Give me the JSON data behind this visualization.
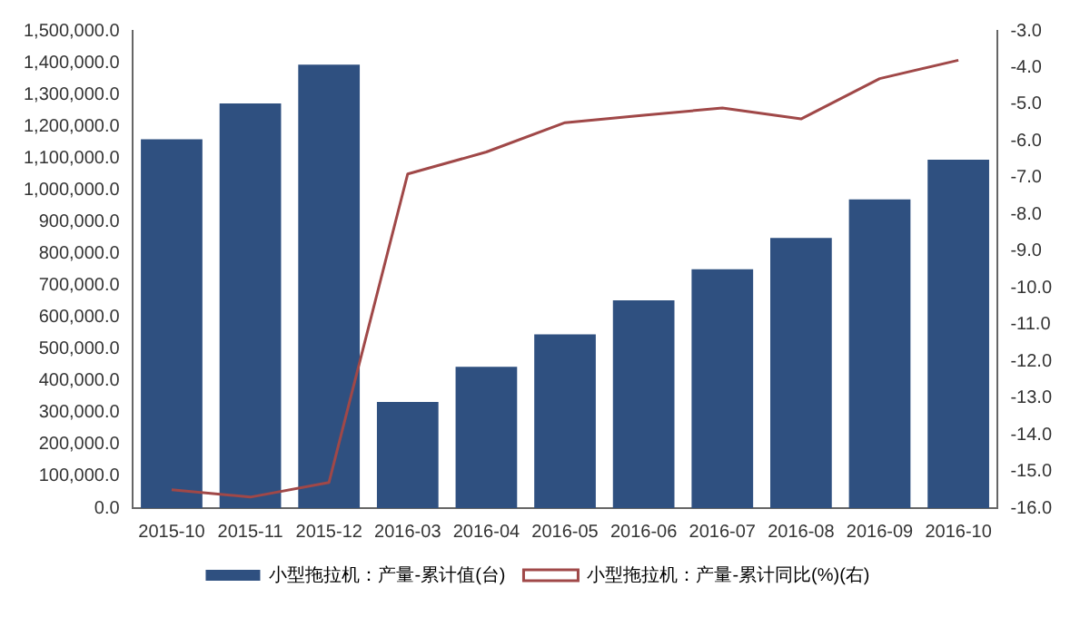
{
  "chart_data": {
    "type": "bar",
    "categories": [
      "2015-10",
      "2015-11",
      "2015-12",
      "2016-03",
      "2016-04",
      "2016-05",
      "2016-06",
      "2016-07",
      "2016-08",
      "2016-09",
      "2016-10"
    ],
    "series": [
      {
        "name": "小型拖拉机：产量-累计值(台)",
        "color": "#2f5080",
        "values": [
          1159000,
          1272000,
          1394000,
          334000,
          444000,
          546000,
          653000,
          751000,
          849000,
          970000,
          1095000
        ]
      },
      {
        "name": "小型拖拉机：产量-累计同比(%)(右)",
        "type": "line",
        "axis": "y2",
        "color": "#a04848",
        "values": [
          -15.5,
          -15.7,
          -15.3,
          -6.9,
          -6.3,
          -5.5,
          -5.3,
          -5.1,
          -5.4,
          -4.3,
          -3.8
        ]
      }
    ],
    "ylim": [
      0,
      1500000
    ],
    "yticks": [
      {
        "value": 0,
        "label": "0.0"
      },
      {
        "value": 100000,
        "label": "100,000.0"
      },
      {
        "value": 200000,
        "label": "200,000.0"
      },
      {
        "value": 300000,
        "label": "300,000.0"
      },
      {
        "value": 400000,
        "label": "400,000.0"
      },
      {
        "value": 500000,
        "label": "500,000.0"
      },
      {
        "value": 600000,
        "label": "600,000.0"
      },
      {
        "value": 700000,
        "label": "700,000.0"
      },
      {
        "value": 800000,
        "label": "800,000.0"
      },
      {
        "value": 900000,
        "label": "900,000.0"
      },
      {
        "value": 1000000,
        "label": "1,000,000.0"
      },
      {
        "value": 1100000,
        "label": "1,100,000.0"
      },
      {
        "value": 1200000,
        "label": "1,200,000.0"
      },
      {
        "value": 1300000,
        "label": "1,300,000.0"
      },
      {
        "value": 1400000,
        "label": "1,400,000.0"
      },
      {
        "value": 1500000,
        "label": "1,500,000.0"
      }
    ],
    "y2lim": [
      -16,
      -3
    ],
    "y2ticks": [
      {
        "value": -16,
        "label": "-16.0"
      },
      {
        "value": -15,
        "label": "-15.0"
      },
      {
        "value": -14,
        "label": "-14.0"
      },
      {
        "value": -13,
        "label": "-13.0"
      },
      {
        "value": -12,
        "label": "-12.0"
      },
      {
        "value": -11,
        "label": "-11.0"
      },
      {
        "value": -10,
        "label": "-10.0"
      },
      {
        "value": -9,
        "label": "-9.0"
      },
      {
        "value": -8,
        "label": "-8.0"
      },
      {
        "value": -7,
        "label": "-7.0"
      },
      {
        "value": -6,
        "label": "-6.0"
      },
      {
        "value": -5,
        "label": "-5.0"
      },
      {
        "value": -4,
        "label": "-4.0"
      },
      {
        "value": -3,
        "label": "-3.0"
      }
    ],
    "grid": false,
    "legend": "bottom",
    "marker": "none"
  }
}
